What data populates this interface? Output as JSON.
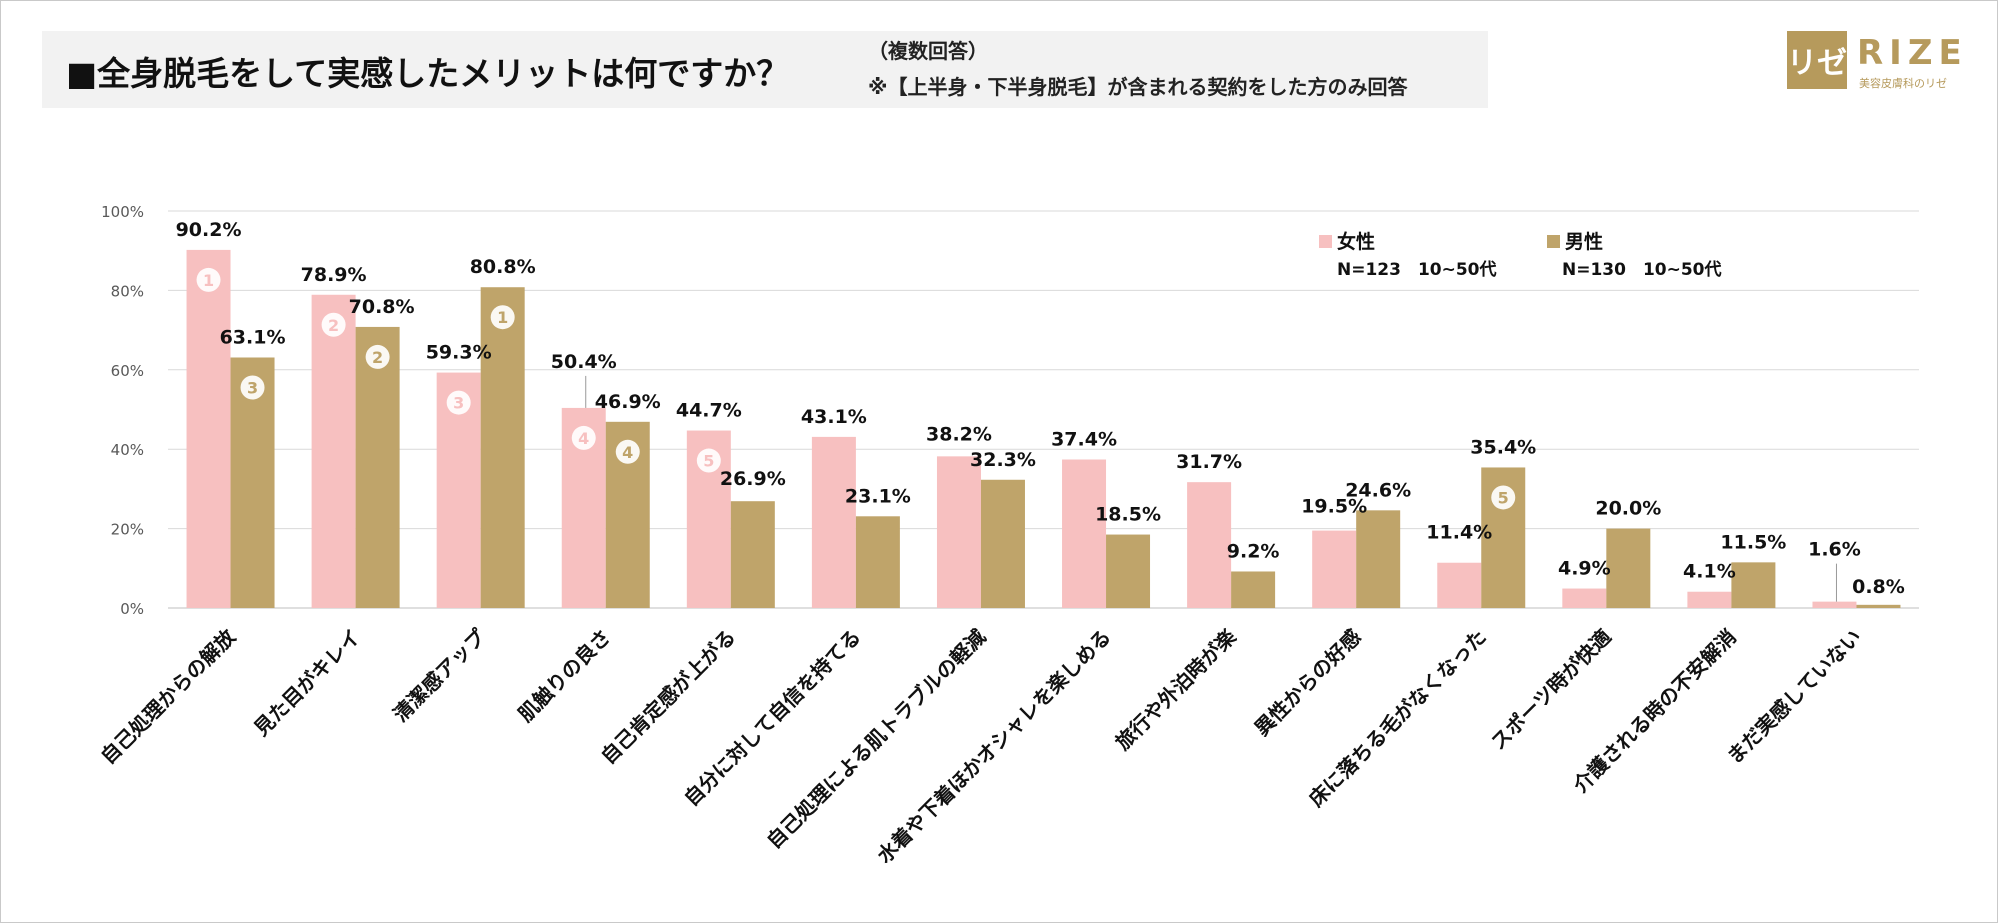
{
  "header": {
    "title": "■全身脱毛をして実感したメリットは何ですか？",
    "note1": "（複数回答）",
    "note2": "※【上半身・下半身脱毛】が含まれる契約をした方のみ回答"
  },
  "logo": {
    "mark": "リゼ",
    "word": "RIZE",
    "tagline": "美容皮膚科のリゼ"
  },
  "colors": {
    "female": "#f7c0c0",
    "male": "#bfa46a",
    "grid": "#d9d9d9",
    "axis": "#bfbfbf"
  },
  "legend": {
    "female": {
      "label": "女性",
      "sub": "N=123　10~50代"
    },
    "male": {
      "label": "男性",
      "sub": "N=130　10~50代"
    }
  },
  "chart_data": {
    "type": "bar",
    "title": "■全身脱毛をして実感したメリットは何ですか？",
    "ylabel": "",
    "xlabel": "",
    "ylim": [
      0,
      100
    ],
    "yticks": [
      "0%",
      "20%",
      "40%",
      "60%",
      "80%",
      "100%"
    ],
    "grid": true,
    "legend_position": "top-right",
    "categories": [
      "自己処理からの解放",
      "見た目がキレイ",
      "清潔感アップ",
      "肌触りの良さ",
      "自己肯定感が上がる",
      "自分に対して自信を持てる",
      "自己処理による肌トラブルの軽減",
      "水着や下着ほかオシャレを楽しめる",
      "旅行や外泊時が楽",
      "異性からの好感",
      "床に落ちる毛がなくなった",
      "スポーツ時が快適",
      "介護される時の不安解消",
      "まだ実感していない"
    ],
    "series": [
      {
        "name": "女性",
        "values": [
          90.2,
          78.9,
          59.3,
          50.4,
          44.7,
          43.1,
          38.2,
          37.4,
          31.7,
          19.5,
          11.4,
          4.9,
          4.1,
          1.6
        ],
        "labels": [
          "90.2%",
          "78.9%",
          "59.3%",
          "50.4%",
          "44.7%",
          "43.1%",
          "38.2%",
          "37.4%",
          "31.7%",
          "19.5%",
          "11.4%",
          "4.9%",
          "4.1%",
          "1.6%"
        ],
        "ranks": [
          "1",
          "2",
          "3",
          "4",
          "5",
          null,
          null,
          null,
          null,
          null,
          null,
          null,
          null,
          null
        ]
      },
      {
        "name": "男性",
        "values": [
          63.1,
          70.8,
          80.8,
          46.9,
          26.9,
          23.1,
          32.3,
          18.5,
          9.2,
          24.6,
          35.4,
          20.0,
          11.5,
          0.8
        ],
        "labels": [
          "63.1%",
          "70.8%",
          "80.8%",
          "46.9%",
          "26.9%",
          "23.1%",
          "32.3%",
          "18.5%",
          "9.2%",
          "24.6%",
          "35.4%",
          "20.0%",
          "11.5%",
          "0.8%"
        ],
        "ranks": [
          "3",
          "2",
          "1",
          "4",
          null,
          null,
          null,
          null,
          null,
          null,
          "5",
          null,
          null,
          null
        ]
      }
    ]
  }
}
